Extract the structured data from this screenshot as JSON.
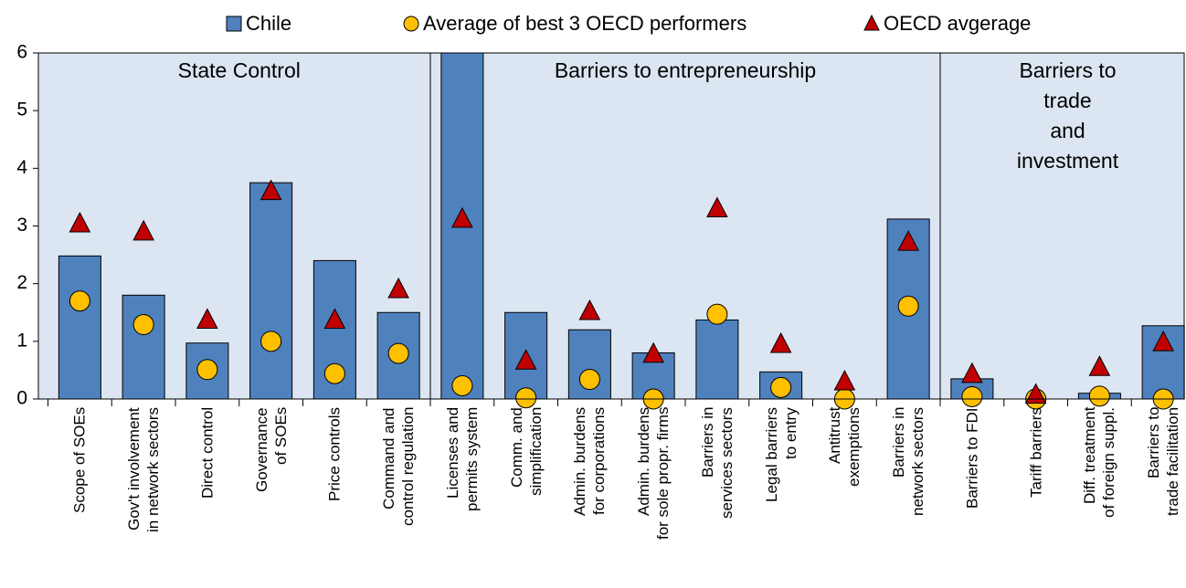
{
  "chart_data": {
    "type": "bar",
    "categories": [
      "Scope of SOEs",
      "Gov't involvement\nin network sectors",
      "Direct control",
      "Governance\nof SOEs",
      "Price controls",
      "Command and\ncontrol regulation",
      "Licenses and\npermits system",
      "Comm. and\nsimplification",
      "Admin. burdens\nfor corporations",
      "Admin. burdens\nfor sole propr. firms",
      "Barriers in\nservices sectors",
      "Legal barriers\nto entry",
      "Antitrust\nexemptions",
      "Barriers in\nnetwork sectors",
      "Barriers to FDI",
      "Tariff barriers",
      "Diff. treatment\nof foreign suppl.",
      "Barriers to\ntrade facilitation"
    ],
    "series": [
      {
        "name": "Chile",
        "color": "#4f81bd",
        "marker": "bar",
        "values": [
          2.48,
          1.8,
          0.97,
          3.75,
          2.4,
          1.5,
          6,
          1.5,
          1.2,
          0.8,
          1.37,
          0.47,
          0,
          3.12,
          0.35,
          0,
          0.1,
          1.27
        ]
      },
      {
        "name": "Average of best 3 OECD performers",
        "color": "#ffc000",
        "marker": "circle",
        "values": [
          1.7,
          1.29,
          0.51,
          1.0,
          0.44,
          0.79,
          0.23,
          0.02,
          0.34,
          0.0,
          1.47,
          0.2,
          0.0,
          1.61,
          0.04,
          0,
          0.05,
          0
        ]
      },
      {
        "name": "OECD avgerage",
        "color": "#c00000",
        "marker": "triangle",
        "values": [
          3.04,
          2.9,
          1.37,
          3.6,
          1.37,
          1.9,
          3.12,
          0.66,
          1.52,
          0.78,
          3.3,
          0.95,
          0.3,
          2.72,
          0.43,
          0.07,
          0.55,
          0.98
        ]
      }
    ],
    "annotations": [
      "State Control",
      "Barriers to entrepreneurship",
      "Barriers to trade\nand investment"
    ],
    "ylim": [
      0,
      6
    ],
    "yticks": [
      0,
      1,
      2,
      3,
      4,
      5,
      6
    ],
    "grid": false,
    "legend": "top"
  }
}
